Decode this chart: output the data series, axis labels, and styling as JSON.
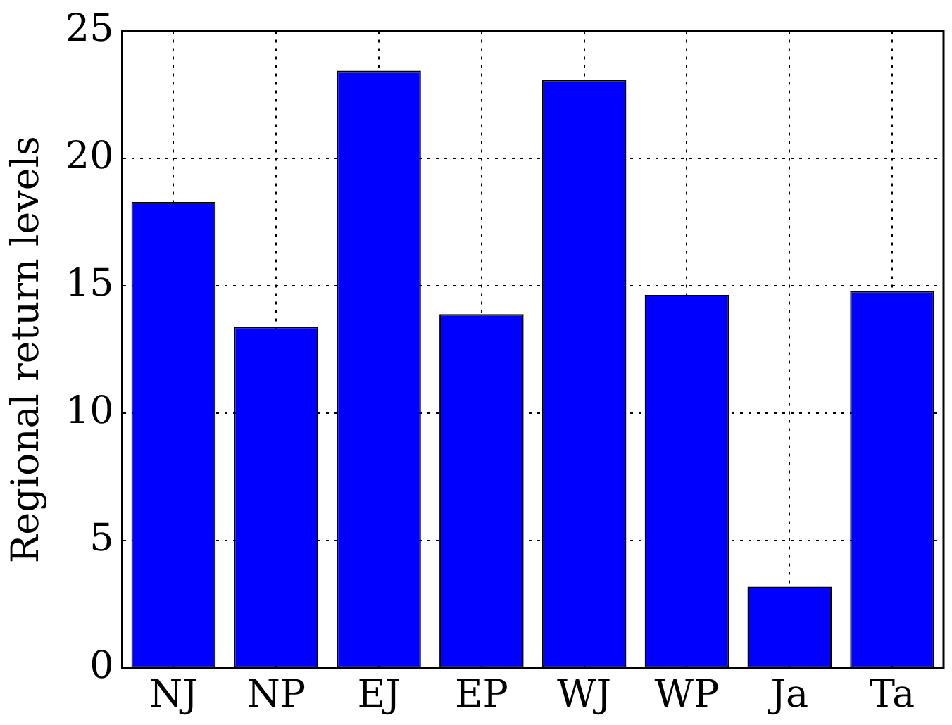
{
  "chart_data": {
    "type": "bar",
    "ylabel": "Regional return levels",
    "categories": [
      "NJ",
      "NP",
      "EJ",
      "EP",
      "WJ",
      "WP",
      "Ja",
      "Ta"
    ],
    "values": [
      18.3,
      13.4,
      23.45,
      13.9,
      23.1,
      14.65,
      3.2,
      14.8
    ],
    "color": "#0000ff",
    "ylim": [
      0,
      25
    ],
    "yticks": [
      0,
      5,
      10,
      15,
      20,
      25
    ],
    "grid": true
  }
}
